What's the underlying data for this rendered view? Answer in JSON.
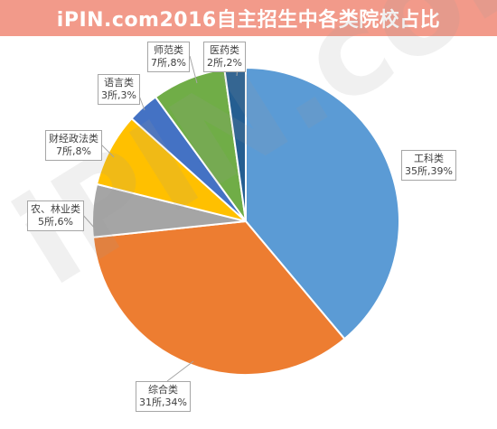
{
  "header": {
    "title": "iPIN.com2016自主招生中各类院校占比"
  },
  "watermark": "iPIN.com",
  "chart_data": {
    "type": "pie",
    "title": "iPIN.com2016自主招生中各类院校占比",
    "slices": [
      {
        "name": "工科类",
        "count": 35,
        "percent": 39,
        "count_label": "35所",
        "percent_label": "39%",
        "color": "#5b9bd5"
      },
      {
        "name": "综合类",
        "count": 31,
        "percent": 34,
        "count_label": "31所",
        "percent_label": "34%",
        "color": "#ed7d31"
      },
      {
        "name": "农、林业类",
        "count": 5,
        "percent": 6,
        "count_label": "5所",
        "percent_label": "6%",
        "color": "#a5a5a5"
      },
      {
        "name": "财经政法类",
        "count": 7,
        "percent": 8,
        "count_label": "7所",
        "percent_label": "8%",
        "color": "#ffc000"
      },
      {
        "name": "语言类",
        "count": 3,
        "percent": 3,
        "count_label": "3所",
        "percent_label": "3%",
        "color": "#4472c4"
      },
      {
        "name": "师范类",
        "count": 7,
        "percent": 8,
        "count_label": "7所",
        "percent_label": "8%",
        "color": "#70ad47"
      },
      {
        "name": "医药类",
        "count": 2,
        "percent": 2,
        "count_label": "2所",
        "percent_label": "2%",
        "color": "#255e91"
      }
    ]
  }
}
